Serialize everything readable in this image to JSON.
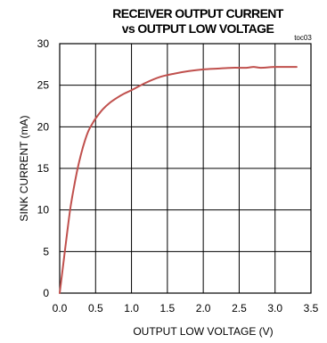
{
  "chart_data": {
    "type": "line",
    "title_line1": "RECEIVER OUTPUT CURRENT",
    "title_line2": "vs OUTPUT LOW VOLTAGE",
    "tag": "toc03",
    "xlabel": "OUTPUT LOW VOLTAGE (V)",
    "ylabel": "SINK CURRENT (mA)",
    "xlim": [
      0,
      3.5
    ],
    "ylim": [
      0,
      30
    ],
    "grid": true,
    "x_ticks": [
      "0.0",
      "0.5",
      "1.0",
      "1.5",
      "2.0",
      "2.5",
      "3.0",
      "3.5"
    ],
    "y_ticks": [
      "0",
      "5",
      "10",
      "15",
      "20",
      "25",
      "30"
    ],
    "series": [
      {
        "color": "#c0504d",
        "x": [
          0,
          0.05,
          0.1,
          0.15,
          0.2,
          0.25,
          0.3,
          0.35,
          0.4,
          0.45,
          0.5,
          0.6,
          0.7,
          0.8,
          0.9,
          1.0,
          1.2,
          1.4,
          1.6,
          1.8,
          2.0,
          2.2,
          2.4,
          2.6,
          2.7,
          2.8,
          3.0,
          3.2,
          3.3
        ],
        "y": [
          0,
          3.5,
          7,
          10.3,
          12.8,
          15,
          16.8,
          18.3,
          19.5,
          20.3,
          21,
          22.1,
          22.9,
          23.5,
          24,
          24.4,
          25.3,
          26,
          26.4,
          26.7,
          26.9,
          27,
          27.1,
          27.1,
          27.2,
          27.1,
          27.2,
          27.2,
          27.2
        ]
      }
    ]
  }
}
